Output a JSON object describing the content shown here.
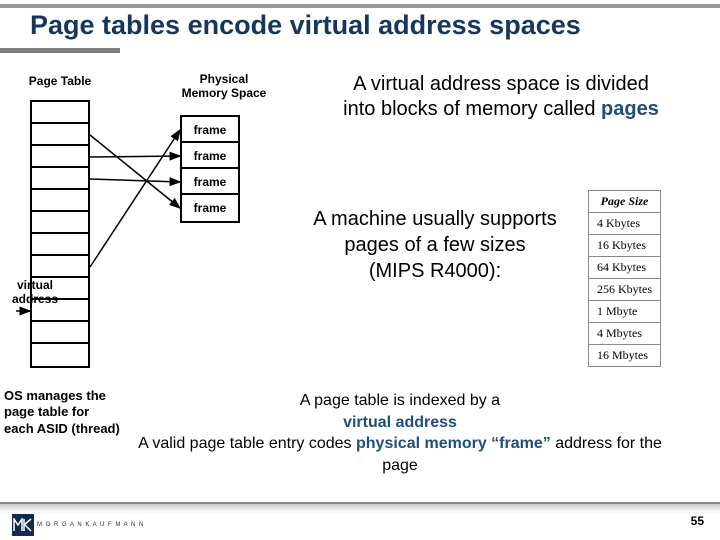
{
  "title": "Page tables encode virtual address spaces",
  "labels": {
    "page_table": "Page Table",
    "phys_mem": "Physical\nMemory Space",
    "virtual_address": "virtual\naddress",
    "os_note": "OS manages the page table for each ASID (thread)"
  },
  "frames": [
    "frame",
    "frame",
    "frame",
    "frame"
  ],
  "page_table_rows": 12,
  "text_blocks": {
    "t1_a": "A virtual address space is divided into blocks of memory called ",
    "t1_b": "pages",
    "t2": "A machine usually supports pages of a few sizes\n(MIPS R4000):",
    "t3_a": "A page table is indexed by a",
    "t3_b": "virtual address",
    "t3_c": "A valid page table entry codes ",
    "t3_d": "physical memory “frame”",
    "t3_e": " address for the page"
  },
  "page_size_table": {
    "header": "Page Size",
    "rows": [
      "4 Kbytes",
      "16 Kbytes",
      "64 Kbytes",
      "256 Kbytes",
      "1 Mbyte",
      "4 Mbytes",
      "16 Mbytes"
    ]
  },
  "arrow_mappings": [
    {
      "from_row": 1,
      "to_frame": 3
    },
    {
      "from_row": 2,
      "to_frame": 1
    },
    {
      "from_row": 3,
      "to_frame": 2
    },
    {
      "from_row": 7,
      "to_frame": 0
    }
  ],
  "vaddr_arrow": {
    "to_row": 9
  },
  "colors": {
    "title": "#17365d",
    "accent_blue": "#1f4e79",
    "border": "#000000",
    "grey": "#888888",
    "logo_bg": "#152a4a"
  },
  "page_number": "55",
  "logo_text": "M O R G A N   K A U F M A N N"
}
